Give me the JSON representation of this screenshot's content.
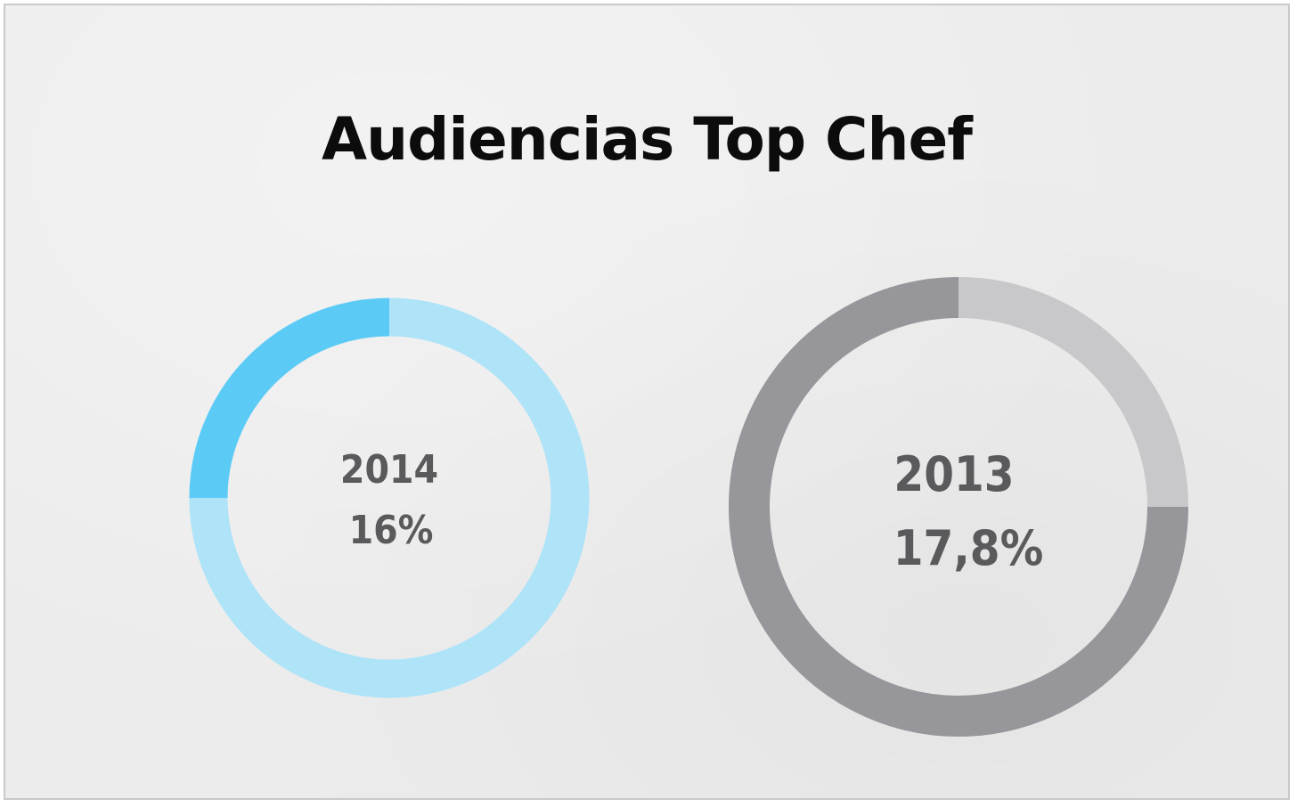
{
  "chart_data": {
    "type": "pie",
    "title": "Audiencias Top Chef",
    "charts": [
      {
        "year_label": "2014",
        "value_label": "16%",
        "value": 16,
        "highlight_fraction": 0.25,
        "colors": {
          "highlight": "#5bcbf5",
          "base": "#aee3f8"
        }
      },
      {
        "year_label": "2013",
        "value_label": "17,8%",
        "value": 17.8,
        "highlight_fraction": 0.75,
        "colors": {
          "highlight": "#97979b",
          "base": "#c8c8ca"
        }
      }
    ]
  },
  "colors": {
    "background": "#ececec",
    "border": "#c9c9c9",
    "title": "#0c0c0c",
    "label": "#5a5a5c"
  }
}
